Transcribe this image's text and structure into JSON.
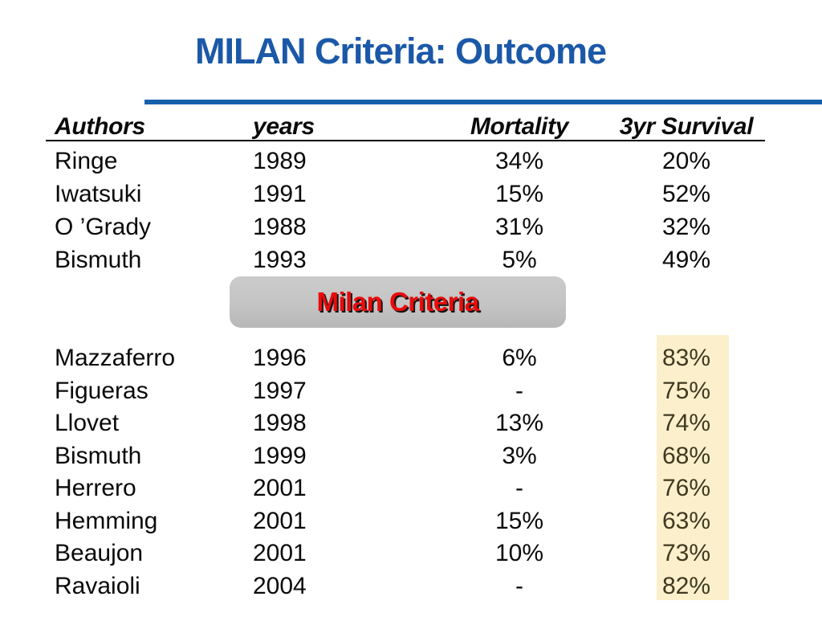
{
  "slide": {
    "title": "MILAN Criteria: Outcome",
    "divider_label": "Milan Criteria"
  },
  "colors": {
    "title_blue": "#1B58A8",
    "rule_blue": "#1560AC",
    "milan_red": "#EA0B0B",
    "box_gray": "#C4C4C4",
    "highlight_bg": "#FBF0CB",
    "highlight_text": "#3F3922"
  },
  "table": {
    "headers": [
      "Authors",
      "years",
      "Mortality",
      "3yr Survival"
    ],
    "group1": [
      {
        "author": "Ringe",
        "year": "1989",
        "mortality": "34%",
        "survival": "20%"
      },
      {
        "author": "Iwatsuki",
        "year": "1991",
        "mortality": "15%",
        "survival": "52%"
      },
      {
        "author": "O ’Grady",
        "year": "1988",
        "mortality": "31%",
        "survival": "32%"
      },
      {
        "author": "Bismuth",
        "year": "1993",
        "mortality": "5%",
        "survival": "49%"
      }
    ],
    "group2": [
      {
        "author": "Mazzaferro",
        "year": "1996",
        "mortality": "6%",
        "survival": "83%"
      },
      {
        "author": "Figueras",
        "year": "1997",
        "mortality": "-",
        "survival": "75%"
      },
      {
        "author": "Llovet",
        "year": "1998",
        "mortality": "13%",
        "survival": "74%"
      },
      {
        "author": "Bismuth",
        "year": "1999",
        "mortality": "3%",
        "survival": "68%"
      },
      {
        "author": "Herrero",
        "year": "2001",
        "mortality": "-",
        "survival": "76%"
      },
      {
        "author": "Hemming",
        "year": "2001",
        "mortality": "15%",
        "survival": "63%"
      },
      {
        "author": "Beaujon",
        "year": "2001",
        "mortality": "10%",
        "survival": "73%"
      },
      {
        "author": "Ravaioli",
        "year": "2004",
        "mortality": "-",
        "survival": "82%"
      }
    ]
  }
}
